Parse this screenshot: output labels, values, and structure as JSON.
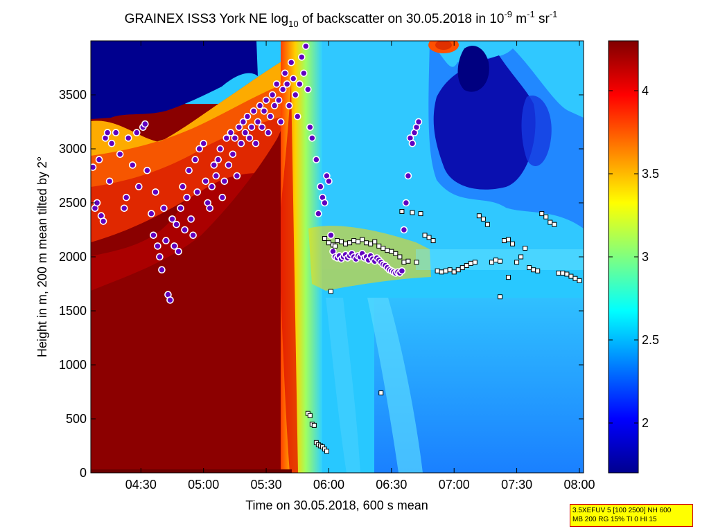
{
  "chart_data": {
    "type": "heatmap",
    "title": {
      "part1": "GRAINEX ISS3 York NE log",
      "sub": "10",
      "part2": " of backscatter on 30.05.2018 in 10",
      "sup1": "-9",
      "part3": " m",
      "sup2": "-1",
      "part4": " sr",
      "sup3": "-1"
    },
    "xlabel": "Time on 30.05.2018, 600 s mean",
    "ylabel": "Height in m, 200 m mean tilted by 2°",
    "x_ticks": [
      "04:30",
      "05:00",
      "05:30",
      "06:00",
      "06:30",
      "07:00",
      "07:30",
      "08:00"
    ],
    "x_tick_minutes": [
      270,
      300,
      330,
      360,
      390,
      420,
      450,
      480
    ],
    "xlim_minutes": [
      246,
      482
    ],
    "y_ticks": [
      0,
      500,
      1000,
      1500,
      2000,
      2500,
      3000,
      3500
    ],
    "ylim": [
      0,
      4000
    ],
    "colorbar": {
      "colormap": "jet",
      "range": [
        1.7,
        4.3
      ],
      "ticks": [
        2,
        2.5,
        3,
        3.5,
        4
      ],
      "tick_labels": [
        "2",
        "2.5",
        "3",
        "3.5",
        "4"
      ]
    },
    "colors": {
      "dark_red": "#800000",
      "red": "#e01000",
      "yellow": "#ffff00",
      "cyan": "#20e0ff",
      "light_blue": "#40c0ff",
      "blue": "#1060ff",
      "dark_blue": "#000090",
      "marker_circle_fill": "#6000c0",
      "marker_circle_edge": "#ffffff",
      "marker_square_fill": "#ffffff",
      "marker_square_edge": "#000000"
    },
    "cloud_base_circles": [
      [
        247,
        2830
      ],
      [
        248,
        2450
      ],
      [
        249,
        2500
      ],
      [
        250,
        2900
      ],
      [
        251,
        2380
      ],
      [
        252,
        2330
      ],
      [
        253,
        3100
      ],
      [
        254,
        3150
      ],
      [
        255,
        2700
      ],
      [
        256,
        3050
      ],
      [
        258,
        3150
      ],
      [
        260,
        2950
      ],
      [
        262,
        2450
      ],
      [
        263,
        2550
      ],
      [
        264,
        3100
      ],
      [
        266,
        2850
      ],
      [
        268,
        3150
      ],
      [
        269,
        2650
      ],
      [
        271,
        3200
      ],
      [
        272,
        3230
      ],
      [
        273,
        2800
      ],
      [
        275,
        2400
      ],
      [
        276,
        2200
      ],
      [
        277,
        2600
      ],
      [
        278,
        2100
      ],
      [
        279,
        2000
      ],
      [
        280,
        1880
      ],
      [
        281,
        2450
      ],
      [
        282,
        2150
      ],
      [
        283,
        1650
      ],
      [
        284,
        1600
      ],
      [
        285,
        2350
      ],
      [
        286,
        2100
      ],
      [
        287,
        2300
      ],
      [
        288,
        2050
      ],
      [
        289,
        2450
      ],
      [
        290,
        2650
      ],
      [
        291,
        2250
      ],
      [
        292,
        2550
      ],
      [
        293,
        2800
      ],
      [
        294,
        2350
      ],
      [
        295,
        2200
      ],
      [
        296,
        2900
      ],
      [
        297,
        2600
      ],
      [
        298,
        3000
      ],
      [
        300,
        3050
      ],
      [
        301,
        2700
      ],
      [
        302,
        2500
      ],
      [
        303,
        2450
      ],
      [
        304,
        2650
      ],
      [
        305,
        2850
      ],
      [
        306,
        2750
      ],
      [
        307,
        2900
      ],
      [
        308,
        3000
      ],
      [
        309,
        2550
      ],
      [
        310,
        2700
      ],
      [
        311,
        3100
      ],
      [
        312,
        2850
      ],
      [
        313,
        3150
      ],
      [
        314,
        2950
      ],
      [
        315,
        3100
      ],
      [
        316,
        2750
      ],
      [
        317,
        3200
      ],
      [
        318,
        3050
      ],
      [
        319,
        3250
      ],
      [
        320,
        3150
      ],
      [
        321,
        3300
      ],
      [
        322,
        3100
      ],
      [
        323,
        3200
      ],
      [
        324,
        3350
      ],
      [
        325,
        3050
      ],
      [
        326,
        3250
      ],
      [
        327,
        3400
      ],
      [
        328,
        3200
      ],
      [
        329,
        3350
      ],
      [
        330,
        3450
      ],
      [
        331,
        3150
      ],
      [
        332,
        3300
      ],
      [
        333,
        3500
      ],
      [
        334,
        3400
      ],
      [
        335,
        3600
      ],
      [
        336,
        3450
      ],
      [
        337,
        3250
      ],
      [
        338,
        3550
      ],
      [
        339,
        3700
      ],
      [
        340,
        3600
      ],
      [
        341,
        3400
      ],
      [
        342,
        3800
      ],
      [
        343,
        3650
      ],
      [
        344,
        3500
      ],
      [
        345,
        3300
      ],
      [
        346,
        3600
      ],
      [
        347,
        3850
      ],
      [
        348,
        3700
      ],
      [
        349,
        3950
      ],
      [
        350,
        3550
      ],
      [
        351,
        3200
      ],
      [
        352,
        3100
      ],
      [
        354,
        2900
      ],
      [
        355,
        2400
      ],
      [
        356,
        2650
      ],
      [
        357,
        2550
      ],
      [
        358,
        2500
      ],
      [
        359,
        2750
      ],
      [
        360,
        2700
      ],
      [
        361,
        2200
      ],
      [
        362,
        2050
      ],
      [
        363,
        2000
      ],
      [
        364,
        1990
      ],
      [
        365,
        2010
      ],
      [
        366,
        1980
      ],
      [
        367,
        2000
      ],
      [
        368,
        2020
      ],
      [
        369,
        1990
      ],
      [
        370,
        2010
      ],
      [
        371,
        2030
      ],
      [
        372,
        2000
      ],
      [
        373,
        1980
      ],
      [
        374,
        2010
      ],
      [
        375,
        2000
      ],
      [
        376,
        2030
      ],
      [
        377,
        1990
      ],
      [
        378,
        2000
      ],
      [
        379,
        1970
      ],
      [
        380,
        2010
      ],
      [
        381,
        1980
      ],
      [
        382,
        1960
      ],
      [
        383,
        1990
      ],
      [
        384,
        1970
      ],
      [
        385,
        1950
      ],
      [
        386,
        1930
      ],
      [
        387,
        1920
      ],
      [
        388,
        1900
      ],
      [
        389,
        1880
      ],
      [
        390,
        1870
      ],
      [
        391,
        1860
      ],
      [
        392,
        1850
      ],
      [
        393,
        1860
      ],
      [
        394,
        1850
      ],
      [
        395,
        1870
      ],
      [
        396,
        2250
      ],
      [
        397,
        2500
      ],
      [
        398,
        2750
      ],
      [
        399,
        3100
      ],
      [
        400,
        3050
      ],
      [
        401,
        3150
      ],
      [
        402,
        3200
      ],
      [
        403,
        3250
      ]
    ],
    "cloud_base_squares": [
      [
        358,
        2170
      ],
      [
        360,
        2130
      ],
      [
        361,
        1680
      ],
      [
        362,
        2110
      ],
      [
        363,
        2100
      ],
      [
        364,
        2150
      ],
      [
        366,
        2140
      ],
      [
        368,
        2120
      ],
      [
        370,
        2130
      ],
      [
        372,
        2150
      ],
      [
        374,
        2140
      ],
      [
        376,
        2160
      ],
      [
        378,
        2130
      ],
      [
        380,
        2120
      ],
      [
        382,
        2140
      ],
      [
        384,
        2100
      ],
      [
        386,
        2080
      ],
      [
        388,
        2060
      ],
      [
        390,
        2050
      ],
      [
        392,
        2030
      ],
      [
        394,
        2000
      ],
      [
        395,
        2420
      ],
      [
        396,
        1950
      ],
      [
        398,
        1960
      ],
      [
        400,
        2410
      ],
      [
        402,
        1950
      ],
      [
        404,
        2400
      ],
      [
        406,
        2200
      ],
      [
        408,
        2180
      ],
      [
        410,
        2150
      ],
      [
        412,
        1870
      ],
      [
        414,
        1860
      ],
      [
        416,
        1870
      ],
      [
        418,
        1880
      ],
      [
        420,
        1860
      ],
      [
        422,
        1880
      ],
      [
        424,
        1900
      ],
      [
        426,
        1920
      ],
      [
        428,
        1940
      ],
      [
        430,
        1950
      ],
      [
        432,
        2380
      ],
      [
        434,
        2350
      ],
      [
        436,
        2300
      ],
      [
        438,
        1950
      ],
      [
        440,
        1970
      ],
      [
        442,
        1960
      ],
      [
        444,
        2150
      ],
      [
        446,
        2160
      ],
      [
        448,
        2120
      ],
      [
        450,
        1950
      ],
      [
        452,
        2000
      ],
      [
        454,
        2080
      ],
      [
        456,
        1900
      ],
      [
        458,
        1880
      ],
      [
        460,
        1870
      ],
      [
        462,
        2400
      ],
      [
        464,
        2370
      ],
      [
        466,
        2320
      ],
      [
        468,
        2300
      ],
      [
        470,
        1850
      ],
      [
        472,
        1850
      ],
      [
        474,
        1840
      ],
      [
        476,
        1820
      ],
      [
        478,
        1800
      ],
      [
        480,
        1780
      ],
      [
        350,
        550
      ],
      [
        351,
        530
      ],
      [
        352,
        450
      ],
      [
        353,
        440
      ],
      [
        354,
        280
      ],
      [
        355,
        260
      ],
      [
        356,
        250
      ],
      [
        357,
        240
      ],
      [
        358,
        220
      ],
      [
        359,
        200
      ],
      [
        385,
        740
      ],
      [
        442,
        1630
      ],
      [
        446,
        1810
      ]
    ]
  },
  "info_box": {
    "line1": "3.5XEFUV 5 [100 2500] NH 600",
    "line2": "MB 200 RG 15% TI 0 HI 15"
  }
}
